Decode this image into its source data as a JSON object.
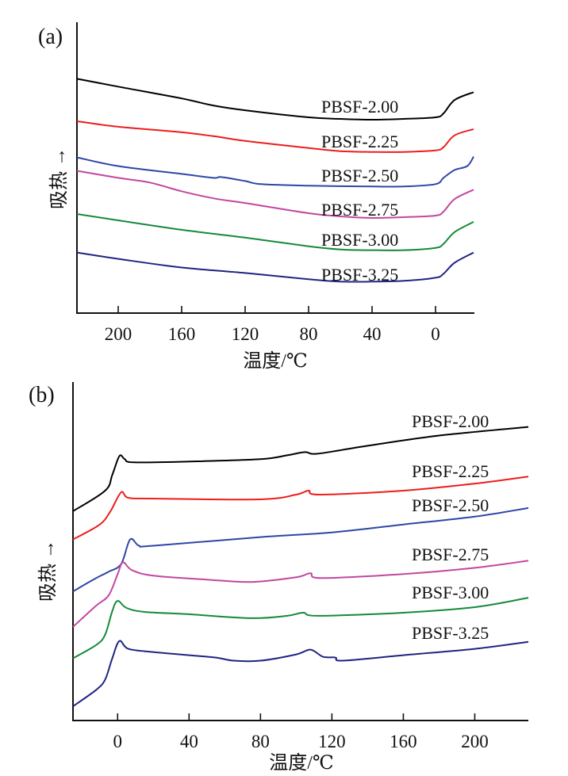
{
  "chart_data": [
    {
      "type": "line",
      "panel_label": "(a)",
      "xlabel": "温度/℃",
      "ylabel": "吸热 →",
      "xlim": [
        226,
        -24.5
      ],
      "x_reversed": true,
      "ylim": [
        0,
        370
      ],
      "x_ticks": [
        200,
        160,
        120,
        80,
        40,
        0
      ],
      "y_ticks": [],
      "grid": false,
      "legend": "inline labels at right",
      "series": [
        {
          "name": "PBSF-2.00",
          "color": "#000000",
          "x": [
            226,
            200,
            160,
            140,
            120,
            80,
            60,
            40,
            20,
            0,
            -5,
            -12,
            -24
          ],
          "y": [
            298,
            288,
            273,
            264,
            258,
            249,
            247,
            246,
            247,
            249,
            254,
            271,
            281
          ]
        },
        {
          "name": "PBSF-2.25",
          "color": "#ee1c1c",
          "x": [
            226,
            200,
            160,
            140,
            120,
            80,
            60,
            40,
            20,
            0,
            -5,
            -12,
            -24
          ],
          "y": [
            244,
            237,
            230,
            225,
            219,
            210,
            206,
            205,
            205,
            207,
            211,
            226,
            234
          ]
        },
        {
          "name": "PBSF-2.50",
          "color": "#2e46a8",
          "x": [
            226,
            200,
            160,
            140,
            135,
            120,
            110,
            80,
            40,
            20,
            0,
            -5,
            -12,
            -20,
            -24
          ],
          "y": [
            198,
            187,
            177,
            172,
            173,
            168,
            164,
            162,
            161,
            161,
            164,
            172,
            182,
            187,
            199
          ]
        },
        {
          "name": "PBSF-2.75",
          "color": "#c2479e",
          "x": [
            226,
            200,
            180,
            160,
            140,
            120,
            80,
            60,
            40,
            20,
            0,
            -5,
            -12,
            -24
          ],
          "y": [
            181,
            172,
            166,
            155,
            146,
            140,
            127,
            123,
            121,
            122,
            124,
            129,
            145,
            157
          ]
        },
        {
          "name": "PBSF-3.00",
          "color": "#158a3a",
          "x": [
            226,
            200,
            160,
            120,
            80,
            60,
            40,
            20,
            0,
            -5,
            -12,
            -24
          ],
          "y": [
            126,
            118,
            106,
            96,
            85,
            81,
            80,
            80,
            83,
            88,
            103,
            116
          ]
        },
        {
          "name": "PBSF-3.25",
          "color": "#1f2580",
          "x": [
            226,
            200,
            160,
            120,
            80,
            60,
            40,
            20,
            0,
            -5,
            -12,
            -24
          ],
          "y": [
            77,
            69,
            58,
            51,
            43,
            40,
            40,
            41,
            45,
            50,
            64,
            77
          ]
        }
      ]
    },
    {
      "type": "line",
      "panel_label": "(b)",
      "xlabel": "温度/℃",
      "ylabel": "吸热 →",
      "xlim": [
        -25,
        230
      ],
      "x_reversed": false,
      "ylim": [
        0,
        430
      ],
      "x_ticks": [
        0,
        40,
        80,
        120,
        160,
        200
      ],
      "y_ticks": [],
      "grid": false,
      "legend": "inline labels at right",
      "series": [
        {
          "name": "PBSF-2.00",
          "color": "#000000",
          "x": [
            -25,
            -7,
            -3,
            1,
            4,
            9,
            40,
            80,
            95,
            105,
            112,
            140,
            180,
            230
          ],
          "y": [
            266,
            292,
            312,
            336,
            332,
            328,
            329,
            332,
            337,
            341,
            339,
            349,
            362,
            373
          ]
        },
        {
          "name": "PBSF-2.25",
          "color": "#ee1c1c",
          "x": [
            -25,
            -10,
            -4,
            2,
            6,
            20,
            80,
            100,
            107,
            113,
            160,
            200,
            230
          ],
          "y": [
            230,
            249,
            266,
            290,
            283,
            282,
            281,
            287,
            292,
            287,
            292,
            301,
            310
          ]
        },
        {
          "name": "PBSF-2.50",
          "color": "#2e46a8",
          "x": [
            -25,
            -12,
            -5,
            2,
            7,
            12,
            20,
            80,
            120,
            160,
            200,
            230
          ],
          "y": [
            164,
            181,
            189,
            199,
            230,
            222,
            222,
            233,
            239,
            249,
            259,
            270
          ]
        },
        {
          "name": "PBSF-2.75",
          "color": "#c2479e",
          "x": [
            -25,
            -12,
            -5,
            0,
            3,
            8,
            20,
            50,
            75,
            100,
            108,
            114,
            160,
            200,
            230
          ],
          "y": [
            119,
            146,
            159,
            186,
            201,
            191,
            184,
            179,
            176,
            182,
            187,
            181,
            186,
            194,
            203
          ]
        },
        {
          "name": "PBSF-3.00",
          "color": "#158a3a",
          "x": [
            -25,
            -12,
            -7,
            -3,
            0,
            5,
            15,
            40,
            75,
            95,
            104,
            112,
            160,
            200,
            230
          ],
          "y": [
            79,
            96,
            109,
            139,
            152,
            143,
            138,
            135,
            130,
            133,
            137,
            133,
            137,
            144,
            156
          ]
        },
        {
          "name": "PBSF-3.25",
          "color": "#1f2580",
          "x": [
            -25,
            -12,
            -7,
            -3,
            1,
            6,
            20,
            40,
            55,
            65,
            80,
            100,
            108,
            115,
            122,
            126,
            160,
            200,
            230
          ],
          "y": [
            18,
            39,
            52,
            79,
            101,
            91,
            87,
            83,
            80,
            76,
            76,
            84,
            90,
            81,
            80,
            76,
            83,
            91,
            100
          ]
        }
      ]
    }
  ]
}
